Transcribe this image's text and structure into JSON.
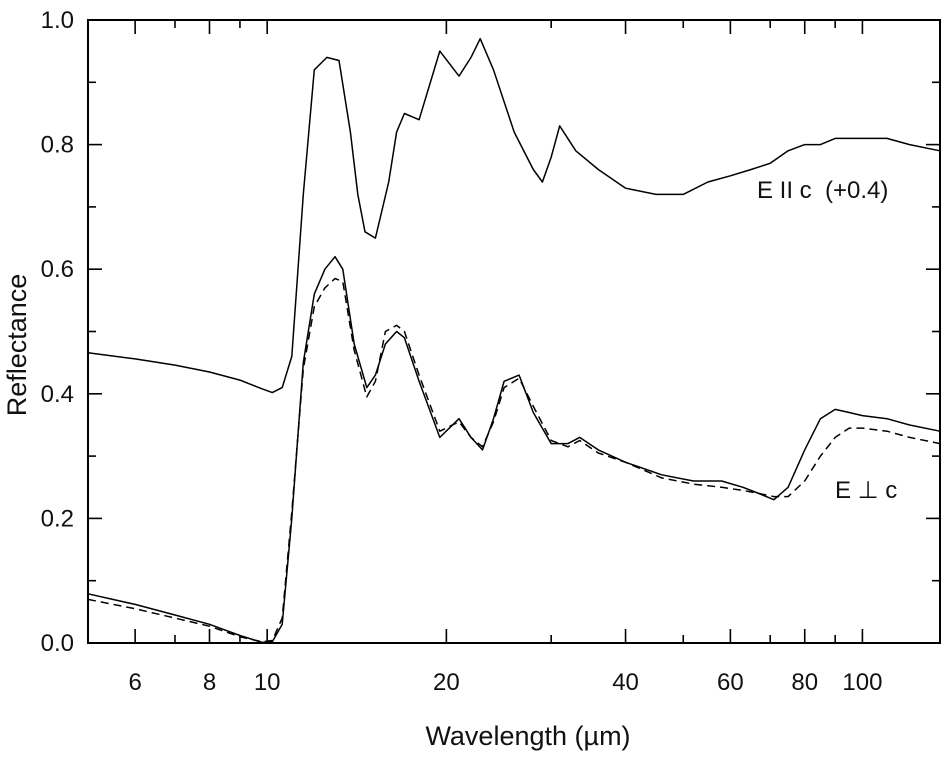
{
  "chart_data": {
    "type": "line",
    "xlabel": "Wavelength (µm)",
    "ylabel": "Reflectance",
    "xscale": "log",
    "xlim": [
      5,
      135
    ],
    "ylim": [
      0,
      1.0
    ],
    "grid": false,
    "x_ticks": [
      6,
      8,
      10,
      20,
      40,
      60,
      80,
      100
    ],
    "x_tick_labels": [
      "6",
      "8",
      "10",
      "20",
      "40",
      "60",
      "80",
      "100"
    ],
    "y_ticks": [
      0.0,
      0.2,
      0.4,
      0.6,
      0.8,
      1.0
    ],
    "y_tick_labels": [
      "0.0",
      "0.2",
      "0.4",
      "0.6",
      "0.8",
      "1.0"
    ],
    "annotations": [
      {
        "text": "E II c  (+0.4)",
        "series": "upper"
      },
      {
        "text": "E ⊥ c",
        "series": "lower"
      }
    ],
    "series": [
      {
        "style": "solid",
        "x": [
          5,
          6,
          7,
          8,
          9,
          9.8,
          10.2,
          10.6,
          11,
          11.5,
          12,
          12.6,
          13.2,
          13.8,
          14.2,
          14.6,
          15.2,
          16,
          16.5,
          17,
          18,
          19.5,
          21,
          22,
          22.8,
          24,
          26,
          28,
          29,
          30,
          31,
          33,
          36,
          40,
          45,
          50,
          55,
          60,
          65,
          70,
          75,
          80,
          85,
          90,
          95,
          100,
          110,
          120,
          135
        ],
        "y": [
          0.466,
          0.456,
          0.446,
          0.435,
          0.422,
          0.408,
          0.402,
          0.41,
          0.46,
          0.72,
          0.92,
          0.94,
          0.935,
          0.82,
          0.72,
          0.66,
          0.65,
          0.74,
          0.82,
          0.85,
          0.84,
          0.95,
          0.91,
          0.94,
          0.97,
          0.92,
          0.82,
          0.76,
          0.74,
          0.78,
          0.83,
          0.79,
          0.76,
          0.73,
          0.72,
          0.72,
          0.74,
          0.75,
          0.76,
          0.77,
          0.79,
          0.8,
          0.8,
          0.81,
          0.81,
          0.81,
          0.81,
          0.8,
          0.79
        ]
      },
      {
        "style": "solid",
        "x": [
          5,
          6,
          7,
          8,
          9,
          9.8,
          10.2,
          10.6,
          11,
          11.5,
          12,
          12.5,
          13,
          13.4,
          14,
          14.7,
          15.2,
          15.8,
          16.5,
          17,
          18,
          19.5,
          21,
          22,
          23,
          24,
          25,
          26.5,
          28,
          30,
          32,
          33.5,
          36,
          40,
          46,
          52,
          58,
          63,
          67,
          71,
          75,
          80,
          85,
          90,
          95,
          100,
          110,
          120,
          135
        ],
        "y": [
          0.079,
          0.062,
          0.045,
          0.03,
          0.012,
          0.001,
          0.002,
          0.03,
          0.2,
          0.45,
          0.56,
          0.6,
          0.62,
          0.6,
          0.48,
          0.41,
          0.43,
          0.48,
          0.5,
          0.49,
          0.42,
          0.33,
          0.36,
          0.33,
          0.31,
          0.36,
          0.42,
          0.43,
          0.37,
          0.32,
          0.32,
          0.33,
          0.31,
          0.29,
          0.27,
          0.26,
          0.26,
          0.25,
          0.24,
          0.23,
          0.25,
          0.31,
          0.36,
          0.375,
          0.37,
          0.365,
          0.36,
          0.35,
          0.34
        ]
      },
      {
        "style": "dashed",
        "x": [
          5,
          6,
          7,
          8,
          9,
          9.8,
          10.2,
          10.6,
          11,
          11.5,
          12,
          12.5,
          13,
          13.4,
          14,
          14.7,
          15.2,
          15.8,
          16.5,
          17,
          18,
          19.5,
          21,
          22,
          23,
          24,
          25,
          26.5,
          28,
          30,
          32,
          33.5,
          36,
          40,
          46,
          52,
          58,
          63,
          67,
          71,
          75,
          80,
          85,
          90,
          95,
          100,
          110,
          120,
          135
        ],
        "y": [
          0.07,
          0.055,
          0.04,
          0.027,
          0.01,
          0.002,
          0.004,
          0.04,
          0.21,
          0.44,
          0.54,
          0.57,
          0.585,
          0.58,
          0.47,
          0.395,
          0.42,
          0.5,
          0.51,
          0.5,
          0.43,
          0.34,
          0.355,
          0.33,
          0.315,
          0.355,
          0.41,
          0.425,
          0.38,
          0.325,
          0.315,
          0.325,
          0.305,
          0.29,
          0.265,
          0.255,
          0.25,
          0.245,
          0.24,
          0.235,
          0.235,
          0.26,
          0.3,
          0.33,
          0.345,
          0.345,
          0.34,
          0.33,
          0.32
        ]
      }
    ]
  }
}
